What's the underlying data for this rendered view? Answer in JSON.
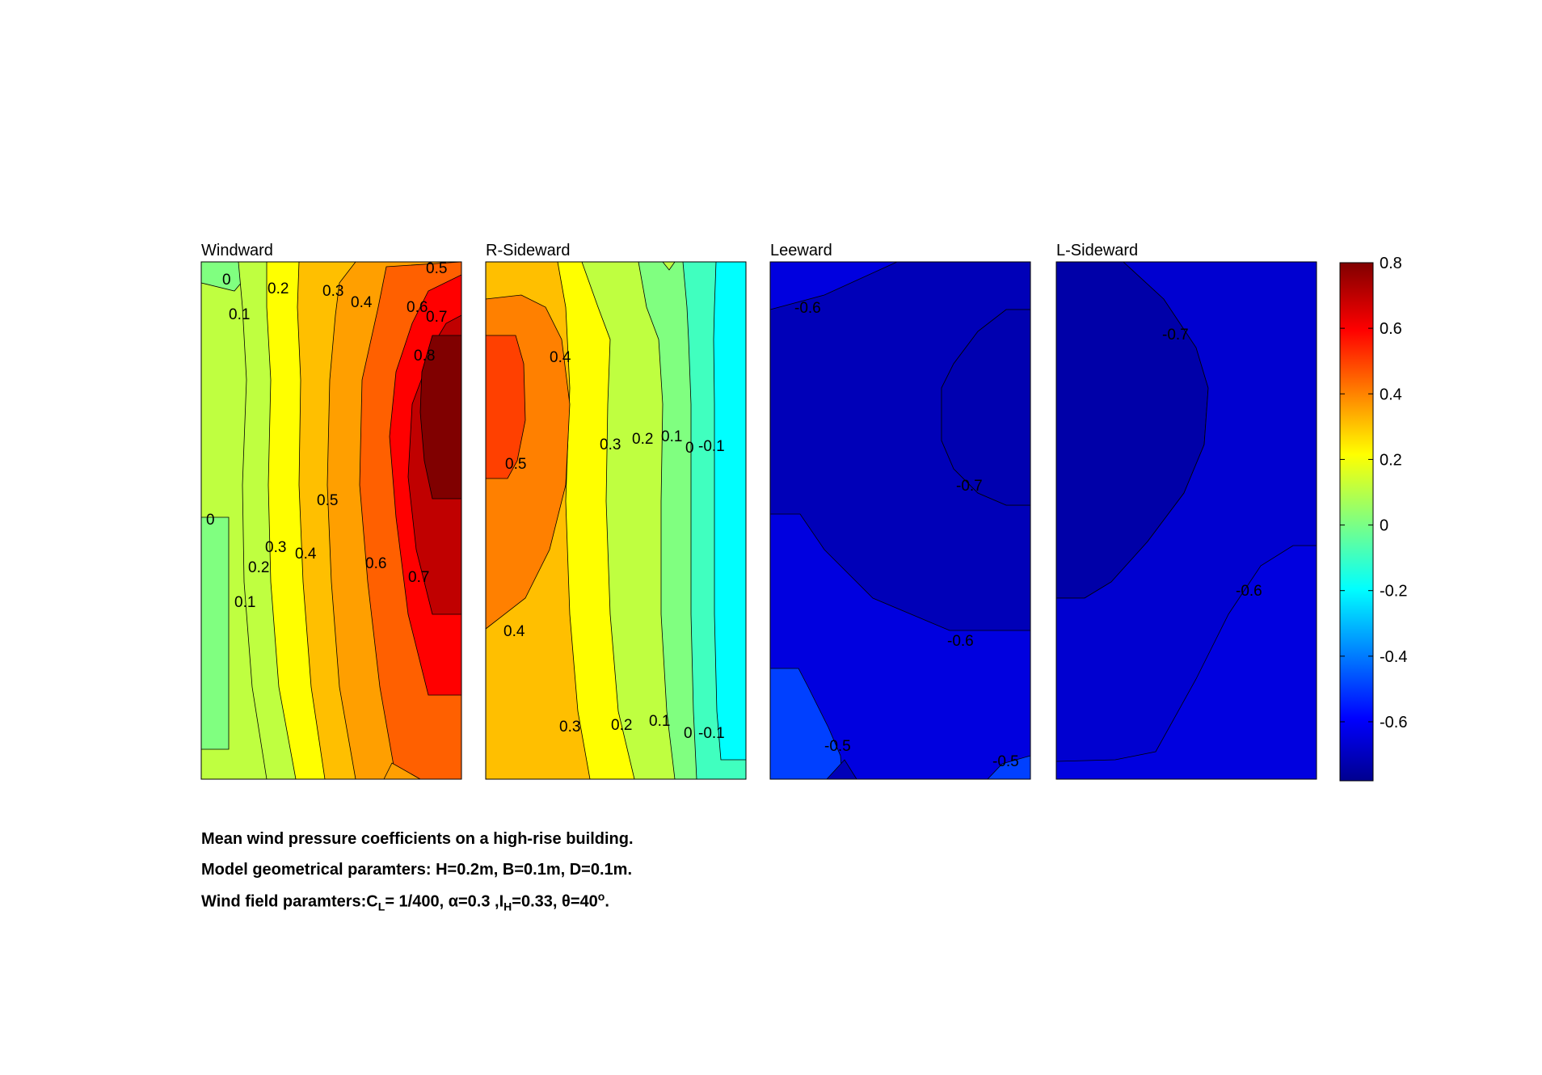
{
  "chart_data": {
    "type": "contour",
    "colormap": "jet",
    "panels": [
      {
        "title": "Windward",
        "levels": [
          -0.1,
          0,
          0.1,
          0.2,
          0.3,
          0.4,
          0.5,
          0.6,
          0.7,
          0.8
        ],
        "contour_labels": [
          "0",
          "0.1",
          "0.2",
          "0.3",
          "0.4",
          "0.5",
          "0.6",
          "0.7",
          "0.8",
          "0",
          "0.1",
          "0.2",
          "0.3",
          "0.4",
          "0.5",
          "0.6",
          "0.7"
        ],
        "min": -0.02,
        "max": 0.83
      },
      {
        "title": "R-Sideward",
        "levels": [
          -0.1,
          0,
          0.1,
          0.2,
          0.3,
          0.4,
          0.5
        ],
        "contour_labels": [
          "0.4",
          "0.5",
          "0.3",
          "0.2",
          "0.1",
          "0",
          "-0.1",
          "0.4",
          "0.3",
          "0.2",
          "0.1",
          "0",
          "-0.1"
        ],
        "min": -0.15,
        "max": 0.55
      },
      {
        "title": "Leeward",
        "levels": [
          -0.7,
          -0.6,
          -0.5
        ],
        "contour_labels": [
          "-0.6",
          "-0.7",
          "-0.6",
          "-0.5",
          "-0.5"
        ],
        "min": -0.74,
        "max": -0.45
      },
      {
        "title": "L-Sideward",
        "levels": [
          -0.7,
          -0.6
        ],
        "contour_labels": [
          "-0.7",
          "-0.6"
        ],
        "min": -0.78,
        "max": -0.55
      }
    ],
    "colorbar": {
      "ticks": [
        "0.8",
        "0.6",
        "0.4",
        "0.2",
        "0",
        "-0.2",
        "-0.4",
        "-0.6"
      ],
      "tick_values": [
        0.8,
        0.6,
        0.4,
        0.2,
        0,
        -0.2,
        -0.4,
        -0.6
      ],
      "range": [
        -0.78,
        0.8
      ]
    }
  },
  "caption": {
    "line1": "Mean wind pressure coefficients on a high-rise building.",
    "line2": "Model geometrical paramters: H=0.2m, B=0.1m, D=0.1m.",
    "line3_a": "Wind field paramters:C",
    "line3_sub1": "L",
    "line3_b": "= 1/400, α=0.3 ,I",
    "line3_sub2": "H",
    "line3_c": "=0.33, θ=40",
    "line3_sup": "o",
    "line3_d": "."
  }
}
